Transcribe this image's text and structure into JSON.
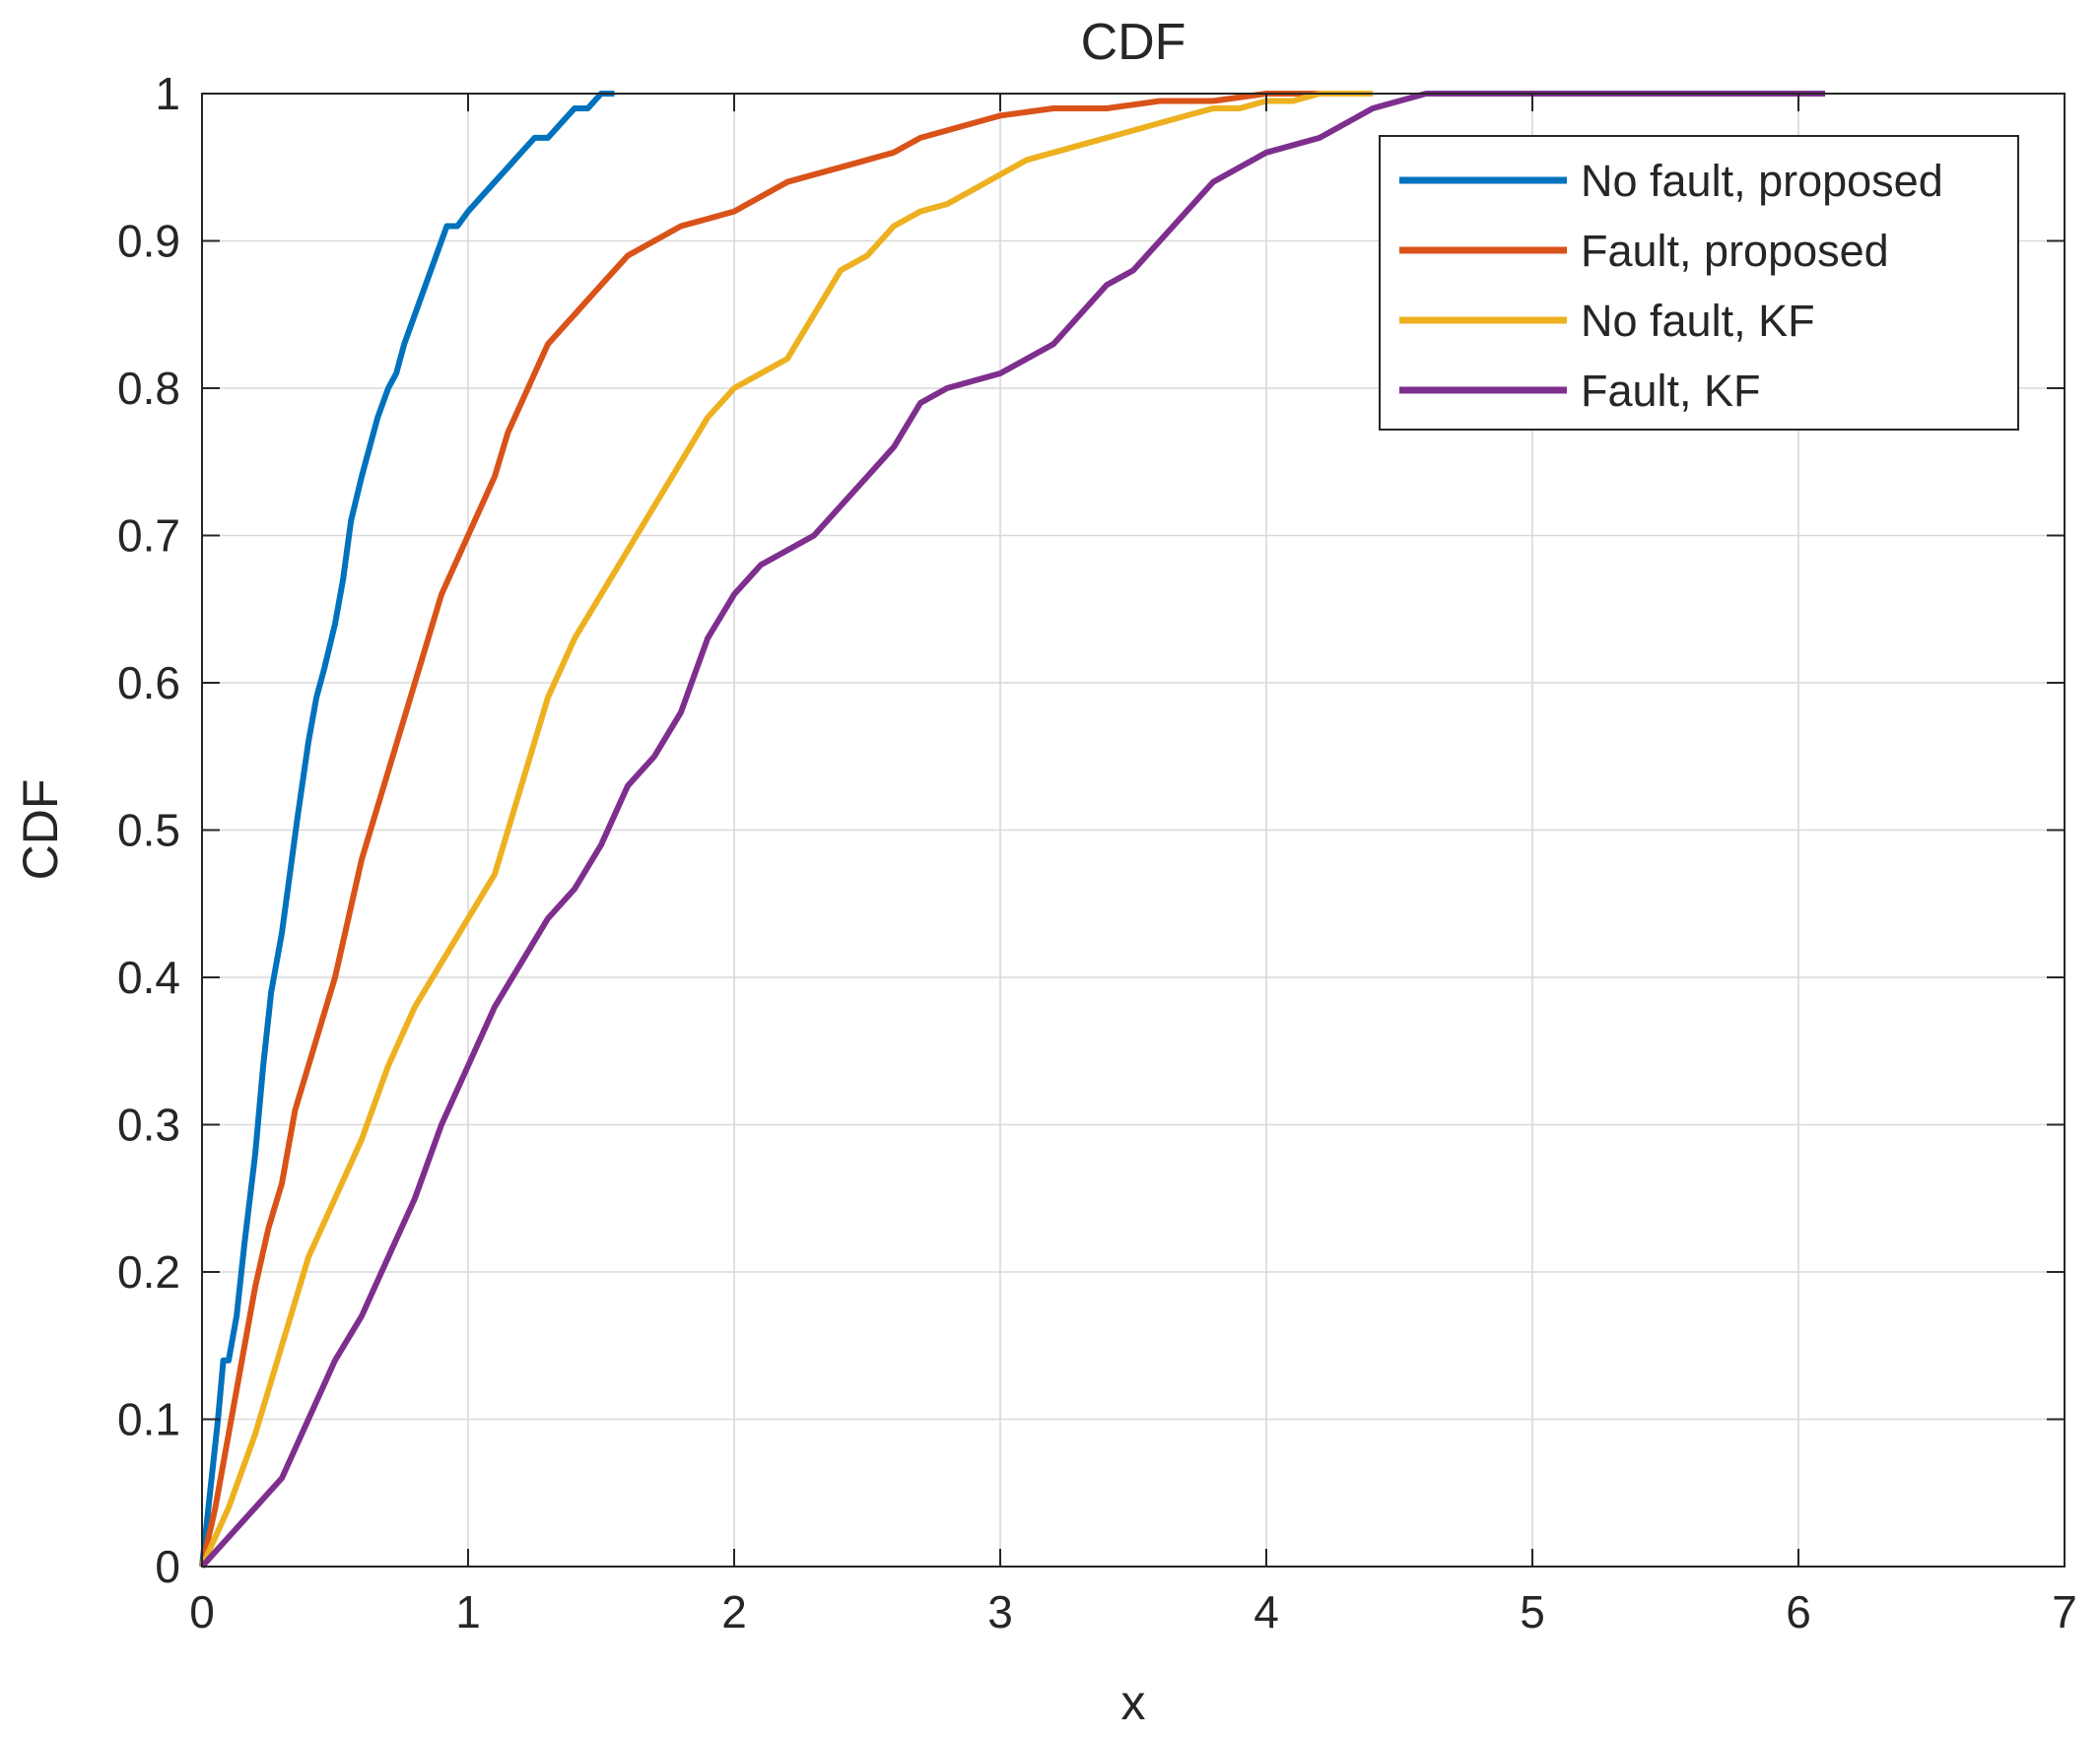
{
  "chart_data": {
    "type": "line",
    "title": "CDF",
    "xlabel": "x",
    "ylabel": "CDF",
    "xlim": [
      0,
      7
    ],
    "ylim": [
      0,
      1
    ],
    "xticks": [
      0,
      1,
      2,
      3,
      4,
      5,
      6,
      7
    ],
    "xtick_labels": [
      "0",
      "1",
      "2",
      "3",
      "4",
      "5",
      "6",
      "7"
    ],
    "yticks": [
      0,
      0.1,
      0.2,
      0.3,
      0.4,
      0.5,
      0.6,
      0.7,
      0.8,
      0.9,
      1
    ],
    "ytick_labels": [
      "0",
      "0.1",
      "0.2",
      "0.3",
      "0.4",
      "0.5",
      "0.6",
      "0.7",
      "0.8",
      "0.9",
      "1"
    ],
    "grid": true,
    "legend_position": "top-right",
    "series": [
      {
        "name": "No fault, proposed",
        "color": "#0072BD",
        "x": [
          0,
          0.03,
          0.06,
          0.08,
          0.1,
          0.13,
          0.16,
          0.2,
          0.23,
          0.26,
          0.3,
          0.33,
          0.36,
          0.4,
          0.43,
          0.46,
          0.5,
          0.53,
          0.56,
          0.6,
          0.63,
          0.66,
          0.7,
          0.73,
          0.76,
          0.8,
          0.84,
          0.88,
          0.92,
          0.96,
          1.0,
          1.05,
          1.1,
          1.15,
          1.2,
          1.25,
          1.3,
          1.35,
          1.4,
          1.45,
          1.5,
          1.55
        ],
        "y": [
          0,
          0.05,
          0.1,
          0.14,
          0.14,
          0.17,
          0.22,
          0.28,
          0.34,
          0.39,
          0.43,
          0.47,
          0.51,
          0.56,
          0.59,
          0.61,
          0.64,
          0.67,
          0.71,
          0.74,
          0.76,
          0.78,
          0.8,
          0.81,
          0.83,
          0.85,
          0.87,
          0.89,
          0.91,
          0.91,
          0.92,
          0.93,
          0.94,
          0.95,
          0.96,
          0.97,
          0.97,
          0.98,
          0.99,
          0.99,
          1.0,
          1.0
        ]
      },
      {
        "name": "Fault, proposed",
        "color": "#D95319",
        "x": [
          0,
          0.05,
          0.1,
          0.15,
          0.2,
          0.25,
          0.3,
          0.35,
          0.4,
          0.45,
          0.5,
          0.55,
          0.6,
          0.65,
          0.7,
          0.75,
          0.8,
          0.85,
          0.9,
          0.95,
          1.0,
          1.05,
          1.1,
          1.15,
          1.2,
          1.25,
          1.3,
          1.35,
          1.4,
          1.45,
          1.5,
          1.6,
          1.7,
          1.8,
          1.9,
          2.0,
          2.1,
          2.2,
          2.3,
          2.4,
          2.5,
          2.6,
          2.7,
          2.8,
          2.9,
          3.0,
          3.2,
          3.4,
          3.6,
          3.8,
          4.0,
          4.2,
          4.4
        ],
        "y": [
          0,
          0.04,
          0.09,
          0.14,
          0.19,
          0.23,
          0.26,
          0.31,
          0.34,
          0.37,
          0.4,
          0.44,
          0.48,
          0.51,
          0.54,
          0.57,
          0.6,
          0.63,
          0.66,
          0.68,
          0.7,
          0.72,
          0.74,
          0.77,
          0.79,
          0.81,
          0.83,
          0.84,
          0.85,
          0.86,
          0.87,
          0.89,
          0.9,
          0.91,
          0.915,
          0.92,
          0.93,
          0.94,
          0.945,
          0.95,
          0.955,
          0.96,
          0.97,
          0.975,
          0.98,
          0.985,
          0.99,
          0.99,
          0.995,
          0.995,
          1.0,
          1.0,
          1.0
        ]
      },
      {
        "name": "No fault, KF",
        "color": "#EDB120",
        "x": [
          0,
          0.1,
          0.2,
          0.3,
          0.4,
          0.5,
          0.6,
          0.7,
          0.8,
          0.9,
          1.0,
          1.1,
          1.2,
          1.3,
          1.4,
          1.5,
          1.6,
          1.7,
          1.8,
          1.9,
          2.0,
          2.1,
          2.2,
          2.3,
          2.4,
          2.5,
          2.6,
          2.7,
          2.8,
          2.9,
          3.0,
          3.1,
          3.2,
          3.3,
          3.4,
          3.5,
          3.6,
          3.7,
          3.8,
          3.9,
          4.0,
          4.1,
          4.2,
          4.3,
          4.4
        ],
        "y": [
          0,
          0.04,
          0.09,
          0.15,
          0.21,
          0.25,
          0.29,
          0.34,
          0.38,
          0.41,
          0.44,
          0.47,
          0.53,
          0.59,
          0.63,
          0.66,
          0.69,
          0.72,
          0.75,
          0.78,
          0.8,
          0.81,
          0.82,
          0.85,
          0.88,
          0.89,
          0.91,
          0.92,
          0.925,
          0.935,
          0.945,
          0.955,
          0.96,
          0.965,
          0.97,
          0.975,
          0.98,
          0.985,
          0.99,
          0.99,
          0.995,
          0.995,
          1.0,
          1.0,
          1.0
        ]
      },
      {
        "name": "Fault, KF",
        "color": "#7E2F8E",
        "x": [
          0,
          0.1,
          0.2,
          0.3,
          0.4,
          0.5,
          0.6,
          0.7,
          0.8,
          0.9,
          1.0,
          1.1,
          1.2,
          1.3,
          1.4,
          1.5,
          1.6,
          1.7,
          1.8,
          1.9,
          2.0,
          2.1,
          2.2,
          2.3,
          2.4,
          2.5,
          2.6,
          2.7,
          2.8,
          2.9,
          3.0,
          3.1,
          3.2,
          3.3,
          3.4,
          3.5,
          3.6,
          3.7,
          3.8,
          3.9,
          4.0,
          4.2,
          4.4,
          4.6,
          5.0,
          5.5,
          6.1
        ],
        "y": [
          0,
          0.02,
          0.04,
          0.06,
          0.1,
          0.14,
          0.17,
          0.21,
          0.25,
          0.3,
          0.34,
          0.38,
          0.41,
          0.44,
          0.46,
          0.49,
          0.53,
          0.55,
          0.58,
          0.63,
          0.66,
          0.68,
          0.69,
          0.7,
          0.72,
          0.74,
          0.76,
          0.79,
          0.8,
          0.805,
          0.81,
          0.82,
          0.83,
          0.85,
          0.87,
          0.88,
          0.9,
          0.92,
          0.94,
          0.95,
          0.96,
          0.97,
          0.99,
          1.0,
          1.0,
          1.0,
          1.0
        ]
      }
    ]
  }
}
